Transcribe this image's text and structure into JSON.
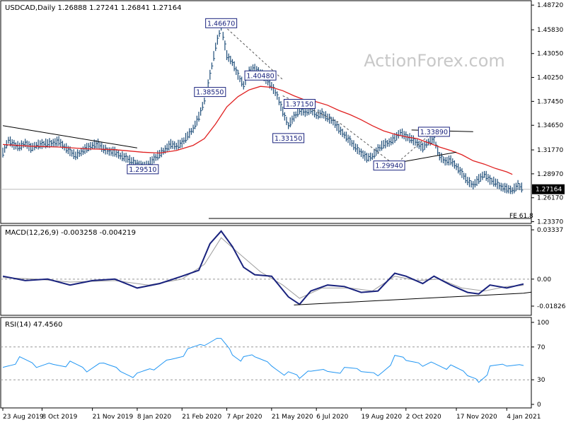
{
  "watermark": "ActionForex.com",
  "colors": {
    "price": "#1f4e79",
    "ma": "#e02020",
    "macd": "#1a237e",
    "signal": "#9e9e9e",
    "rsi": "#2196f3",
    "trend": "#000000",
    "dashed": "#555555",
    "label_border": "#1a237e",
    "watermark": "#c8c8c8",
    "current_box": "#000000"
  },
  "chart_data": [
    {
      "type": "ohlc",
      "title": "USDCAD,Daily  1.26888 1.27241 1.26841 1.27164",
      "symbol": "USDCAD",
      "timeframe": "Daily",
      "ohlc_last": {
        "open": 1.26888,
        "high": 1.27241,
        "low": 1.26841,
        "close": 1.27164
      },
      "y_ticks": [
        "1.48720",
        "1.45830",
        "1.43050",
        "1.40250",
        "1.37450",
        "1.34650",
        "1.31770",
        "1.28970",
        "1.26170",
        "1.23370"
      ],
      "ylim": [
        1.2325,
        1.4915
      ],
      "current_price": "1.27164",
      "fib_label": "FE 61.8",
      "fib_level": 1.2375,
      "price_series": [
        [
          0,
          1.314
        ],
        [
          1,
          1.329
        ],
        [
          2,
          1.323
        ],
        [
          3,
          1.321
        ],
        [
          4,
          1.3255
        ],
        [
          5,
          1.3195
        ],
        [
          6,
          1.323
        ],
        [
          7,
          1.324
        ],
        [
          8,
          1.325
        ],
        [
          9,
          1.3255
        ],
        [
          10,
          1.3275
        ],
        [
          11,
          1.321
        ],
        [
          12,
          1.3155
        ],
        [
          13,
          1.3105
        ],
        [
          14,
          1.315
        ],
        [
          15,
          1.3195
        ],
        [
          16,
          1.323
        ],
        [
          17,
          1.3245
        ],
        [
          18,
          1.3185
        ],
        [
          19,
          1.3155
        ],
        [
          20,
          1.315
        ],
        [
          21,
          1.3105
        ],
        [
          22,
          1.308
        ],
        [
          23,
          1.304
        ],
        [
          24,
          1.301
        ],
        [
          25,
          1.2975
        ],
        [
          26,
          1.301
        ],
        [
          27,
          1.307
        ],
        [
          28,
          1.3125
        ],
        [
          29,
          1.318
        ],
        [
          30,
          1.324
        ],
        [
          31,
          1.322
        ],
        [
          32,
          1.3255
        ],
        [
          33,
          1.334
        ],
        [
          34,
          1.342
        ],
        [
          35,
          1.356
        ],
        [
          36,
          1.375
        ],
        [
          37,
          1.405
        ],
        [
          38,
          1.438
        ],
        [
          39,
          1.462
        ],
        [
          40,
          1.428
        ],
        [
          41,
          1.42
        ],
        [
          42,
          1.405
        ],
        [
          43,
          1.393
        ],
        [
          44,
          1.41
        ],
        [
          45,
          1.412
        ],
        [
          46,
          1.408
        ],
        [
          47,
          1.4
        ],
        [
          48,
          1.392
        ],
        [
          49,
          1.381
        ],
        [
          50,
          1.362
        ],
        [
          51,
          1.346
        ],
        [
          52,
          1.356
        ],
        [
          53,
          1.364
        ],
        [
          54,
          1.361
        ],
        [
          55,
          1.365
        ],
        [
          56,
          1.358
        ],
        [
          57,
          1.36
        ],
        [
          58,
          1.355
        ],
        [
          59,
          1.351
        ],
        [
          60,
          1.342
        ],
        [
          61,
          1.335
        ],
        [
          62,
          1.328
        ],
        [
          63,
          1.32
        ],
        [
          64,
          1.314
        ],
        [
          65,
          1.308
        ],
        [
          66,
          1.31
        ],
        [
          67,
          1.318
        ],
        [
          68,
          1.324
        ],
        [
          69,
          1.326
        ],
        [
          70,
          1.331
        ],
        [
          71,
          1.338
        ],
        [
          72,
          1.333
        ],
        [
          73,
          1.33
        ],
        [
          74,
          1.325
        ],
        [
          75,
          1.32
        ],
        [
          76,
          1.327
        ],
        [
          77,
          1.33
        ],
        [
          78,
          1.31
        ],
        [
          79,
          1.304
        ],
        [
          80,
          1.305
        ],
        [
          81,
          1.298
        ],
        [
          82,
          1.29
        ],
        [
          83,
          1.281
        ],
        [
          84,
          1.276
        ],
        [
          85,
          1.283
        ],
        [
          86,
          1.289
        ],
        [
          87,
          1.282
        ],
        [
          88,
          1.279
        ],
        [
          89,
          1.274
        ],
        [
          90,
          1.272
        ],
        [
          91,
          1.27
        ],
        [
          92,
          1.276
        ],
        [
          93,
          1.2716
        ]
      ],
      "ma_series": [
        [
          0,
          1.324
        ],
        [
          5,
          1.322
        ],
        [
          10,
          1.321
        ],
        [
          15,
          1.319
        ],
        [
          20,
          1.318
        ],
        [
          25,
          1.315
        ],
        [
          28,
          1.314
        ],
        [
          31,
          1.317
        ],
        [
          34,
          1.323
        ],
        [
          36,
          1.331
        ],
        [
          38,
          1.348
        ],
        [
          40,
          1.368
        ],
        [
          42,
          1.38
        ],
        [
          44,
          1.388
        ],
        [
          46,
          1.392
        ],
        [
          48,
          1.391
        ],
        [
          50,
          1.387
        ],
        [
          52,
          1.381
        ],
        [
          54,
          1.376
        ],
        [
          56,
          1.374
        ],
        [
          58,
          1.37
        ],
        [
          60,
          1.364
        ],
        [
          62,
          1.359
        ],
        [
          64,
          1.353
        ],
        [
          66,
          1.346
        ],
        [
          68,
          1.34
        ],
        [
          70,
          1.336
        ],
        [
          72,
          1.333
        ],
        [
          74,
          1.331
        ],
        [
          76,
          1.326
        ],
        [
          78,
          1.321
        ],
        [
          80,
          1.317
        ],
        [
          82,
          1.312
        ],
        [
          84,
          1.305
        ],
        [
          86,
          1.301
        ],
        [
          88,
          1.296
        ],
        [
          90,
          1.292
        ],
        [
          91,
          1.289
        ]
      ],
      "labels": [
        {
          "text": "1.46670",
          "x": 39,
          "y": 1.466
        },
        {
          "text": "1.38550",
          "x": 37,
          "y": 1.3855
        },
        {
          "text": "1.29510",
          "x": 25,
          "y": 1.2951
        },
        {
          "text": "1.40480",
          "x": 46,
          "y": 1.4048
        },
        {
          "text": "1.37150",
          "x": 53,
          "y": 1.3715
        },
        {
          "text": "1.33150",
          "x": 51,
          "y": 1.3315
        },
        {
          "text": "1.29940",
          "x": 69,
          "y": 1.2994
        },
        {
          "text": "1.33890",
          "x": 77,
          "y": 1.3389
        }
      ],
      "trendlines": [
        {
          "style": "solid",
          "points": [
            [
              0,
              1.346
            ],
            [
              24,
              1.32
            ]
          ]
        },
        {
          "style": "dashed",
          "points": [
            [
              39,
              1.466
            ],
            [
              50,
              1.4
            ]
          ]
        },
        {
          "style": "dashed",
          "points": [
            [
              50,
              1.381
            ],
            [
              60,
              1.35
            ],
            [
              70,
              1.3
            ]
          ]
        },
        {
          "style": "dashed",
          "points": [
            [
              70,
              1.3
            ],
            [
              77,
              1.34
            ]
          ]
        },
        {
          "style": "solid",
          "points": [
            [
              69,
              1.301
            ],
            [
              81,
              1.315
            ]
          ]
        },
        {
          "style": "solid",
          "points": [
            [
              73,
              1.341
            ],
            [
              84,
              1.339
            ]
          ]
        }
      ]
    },
    {
      "type": "line",
      "title": "MACD(12,26,9) -0.003258 -0.004219",
      "y_ticks": [
        "0.03337",
        "0.00",
        "-0.018262"
      ],
      "ylim": [
        -0.024,
        0.0358
      ],
      "series": [
        {
          "name": "MACD",
          "values": [
            [
              0,
              0.002
            ],
            [
              4,
              -0.001
            ],
            [
              8,
              0.0
            ],
            [
              12,
              -0.004
            ],
            [
              16,
              -0.001
            ],
            [
              20,
              0.0
            ],
            [
              24,
              -0.006
            ],
            [
              28,
              -0.003
            ],
            [
              32,
              0.002
            ],
            [
              35,
              0.006
            ],
            [
              37,
              0.024
            ],
            [
              39,
              0.0325
            ],
            [
              41,
              0.022
            ],
            [
              43,
              0.008
            ],
            [
              45,
              0.003
            ],
            [
              48,
              0.002
            ],
            [
              51,
              -0.012
            ],
            [
              53,
              -0.017
            ],
            [
              55,
              -0.008
            ],
            [
              58,
              -0.004
            ],
            [
              61,
              -0.005
            ],
            [
              64,
              -0.009
            ],
            [
              67,
              -0.008
            ],
            [
              70,
              0.004
            ],
            [
              72,
              0.002
            ],
            [
              75,
              -0.003
            ],
            [
              77,
              0.002
            ],
            [
              80,
              -0.004
            ],
            [
              83,
              -0.009
            ],
            [
              85,
              -0.01
            ],
            [
              87,
              -0.004
            ],
            [
              90,
              -0.006
            ],
            [
              93,
              -0.0033
            ]
          ]
        },
        {
          "name": "Signal",
          "values": [
            [
              0,
              0.001
            ],
            [
              6,
              0.0
            ],
            [
              12,
              -0.002
            ],
            [
              20,
              -0.001
            ],
            [
              26,
              -0.004
            ],
            [
              32,
              0.0
            ],
            [
              36,
              0.01
            ],
            [
              39,
              0.028
            ],
            [
              42,
              0.018
            ],
            [
              46,
              0.005
            ],
            [
              50,
              -0.004
            ],
            [
              53,
              -0.013
            ],
            [
              57,
              -0.006
            ],
            [
              62,
              -0.006
            ],
            [
              66,
              -0.008
            ],
            [
              70,
              0.002
            ],
            [
              74,
              -0.001
            ],
            [
              78,
              0.0
            ],
            [
              82,
              -0.006
            ],
            [
              86,
              -0.008
            ],
            [
              90,
              -0.005
            ],
            [
              93,
              -0.0042
            ]
          ]
        }
      ],
      "trendline": [
        [
          52,
          -0.0175
        ],
        [
          93,
          -0.0095
        ]
      ]
    },
    {
      "type": "line",
      "title": "RSI(14) 47.4560",
      "y_ticks": [
        "100",
        "70",
        "30",
        "0"
      ],
      "ylim": [
        0,
        100
      ],
      "levels": [
        70,
        30
      ],
      "series": [
        {
          "name": "RSI",
          "values": [
            [
              0,
              50
            ],
            [
              3,
              55
            ],
            [
              6,
              45
            ],
            [
              9,
              52
            ],
            [
              12,
              48
            ],
            [
              15,
              38
            ],
            [
              18,
              52
            ],
            [
              21,
              45
            ],
            [
              24,
              35
            ],
            [
              27,
              42
            ],
            [
              30,
              58
            ],
            [
              33,
              63
            ],
            [
              36,
              70
            ],
            [
              39,
              82
            ],
            [
              41,
              65
            ],
            [
              43,
              55
            ],
            [
              45,
              58
            ],
            [
              48,
              50
            ],
            [
              51,
              35
            ],
            [
              53,
              30
            ],
            [
              55,
              42
            ],
            [
              58,
              45
            ],
            [
              61,
              42
            ],
            [
              64,
              40
            ],
            [
              67,
              38
            ],
            [
              70,
              55
            ],
            [
              72,
              52
            ],
            [
              75,
              48
            ],
            [
              77,
              55
            ],
            [
              80,
              45
            ],
            [
              83,
              35
            ],
            [
              85,
              30
            ],
            [
              87,
              42
            ],
            [
              90,
              45
            ],
            [
              93,
              47.456
            ]
          ]
        }
      ]
    }
  ],
  "x_axis_labels": [
    {
      "text": "23 Aug 2019",
      "x": 0
    },
    {
      "text": "8 Oct 2019",
      "x": 7
    },
    {
      "text": "21 Nov 2019",
      "x": 16
    },
    {
      "text": "8 Jan 2020",
      "x": 24
    },
    {
      "text": "21 Feb 2020",
      "x": 32
    },
    {
      "text": "7 Apr 2020",
      "x": 40
    },
    {
      "text": "21 May 2020",
      "x": 48
    },
    {
      "text": "6 Jul 2020",
      "x": 56
    },
    {
      "text": "19 Aug 2020",
      "x": 64
    },
    {
      "text": "2 Oct 2020",
      "x": 72
    },
    {
      "text": "17 Nov 2020",
      "x": 81
    },
    {
      "text": "4 Jan 2021",
      "x": 90
    }
  ]
}
